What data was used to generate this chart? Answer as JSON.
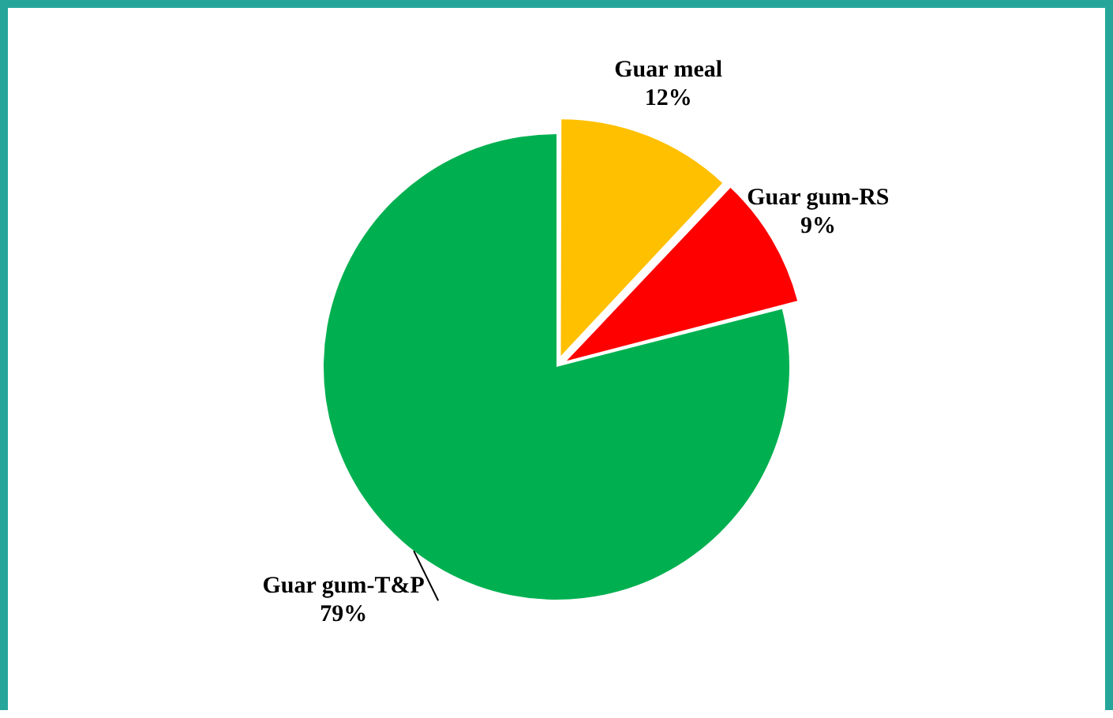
{
  "chart_data": {
    "type": "pie",
    "categories": [
      "Guar meal",
      "Guar gum-RS",
      "Guar gum-T&P"
    ],
    "values": [
      12,
      9,
      79
    ],
    "colors": [
      "#ffc000",
      "#ff0000",
      "#00b050"
    ],
    "value_labels": [
      "12%",
      "9%",
      "79%"
    ],
    "legend": false
  }
}
